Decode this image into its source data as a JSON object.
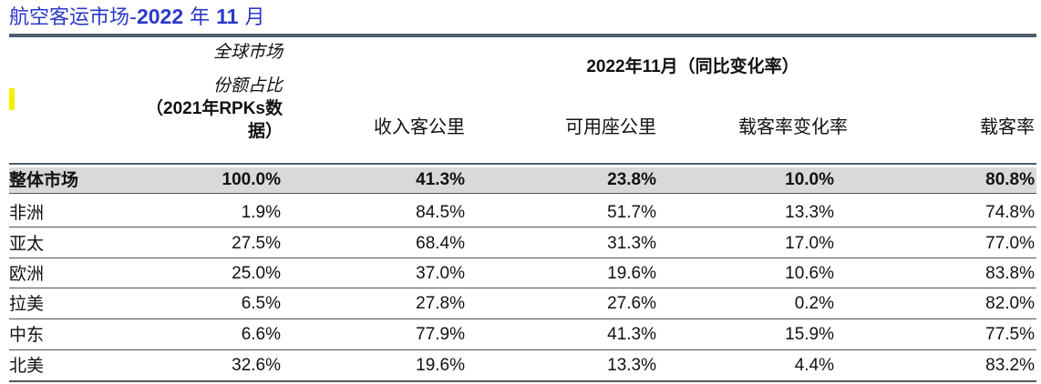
{
  "title": {
    "prefix": "航空客运市场-",
    "year": "2022",
    "sep1": " 年 ",
    "month": "11",
    "sep2": " 月"
  },
  "header": {
    "share_line1": "全球市场",
    "share_line2": "份额占比",
    "share_line3": "（2021年RPKs数",
    "share_line4": "据）",
    "period": "2022年11月（同比变化率）",
    "col_rpk": "收入客公里",
    "col_ask": "可用座公里",
    "col_plf_change": "载客率变化率",
    "col_plf": "载客率"
  },
  "colors": {
    "title": "#2a39c9",
    "total_row_bg": "#d9d9d9",
    "rule": "#4f5d6e",
    "marker": "#f0f000"
  },
  "rows": [
    {
      "region": "整体市场",
      "share": "100.0%",
      "rpk": "41.3%",
      "ask": "23.8%",
      "plf_change": "10.0%",
      "plf": "80.8%"
    },
    {
      "region": "非洲",
      "share": "1.9%",
      "rpk": "84.5%",
      "ask": "51.7%",
      "plf_change": "13.3%",
      "plf": "74.8%"
    },
    {
      "region": "亚太",
      "share": "27.5%",
      "rpk": "68.4%",
      "ask": "31.3%",
      "plf_change": "17.0%",
      "plf": "77.0%"
    },
    {
      "region": "欧洲",
      "share": "25.0%",
      "rpk": "37.0%",
      "ask": "19.6%",
      "plf_change": "10.6%",
      "plf": "83.8%"
    },
    {
      "region": "拉美",
      "share": "6.5%",
      "rpk": "27.8%",
      "ask": "27.6%",
      "plf_change": "0.2%",
      "plf": "82.0%"
    },
    {
      "region": "中东",
      "share": "6.6%",
      "rpk": "77.9%",
      "ask": "41.3%",
      "plf_change": "15.9%",
      "plf": "77.5%"
    },
    {
      "region": "北美",
      "share": "32.6%",
      "rpk": "19.6%",
      "ask": "13.3%",
      "plf_change": "4.4%",
      "plf": "83.2%"
    }
  ]
}
